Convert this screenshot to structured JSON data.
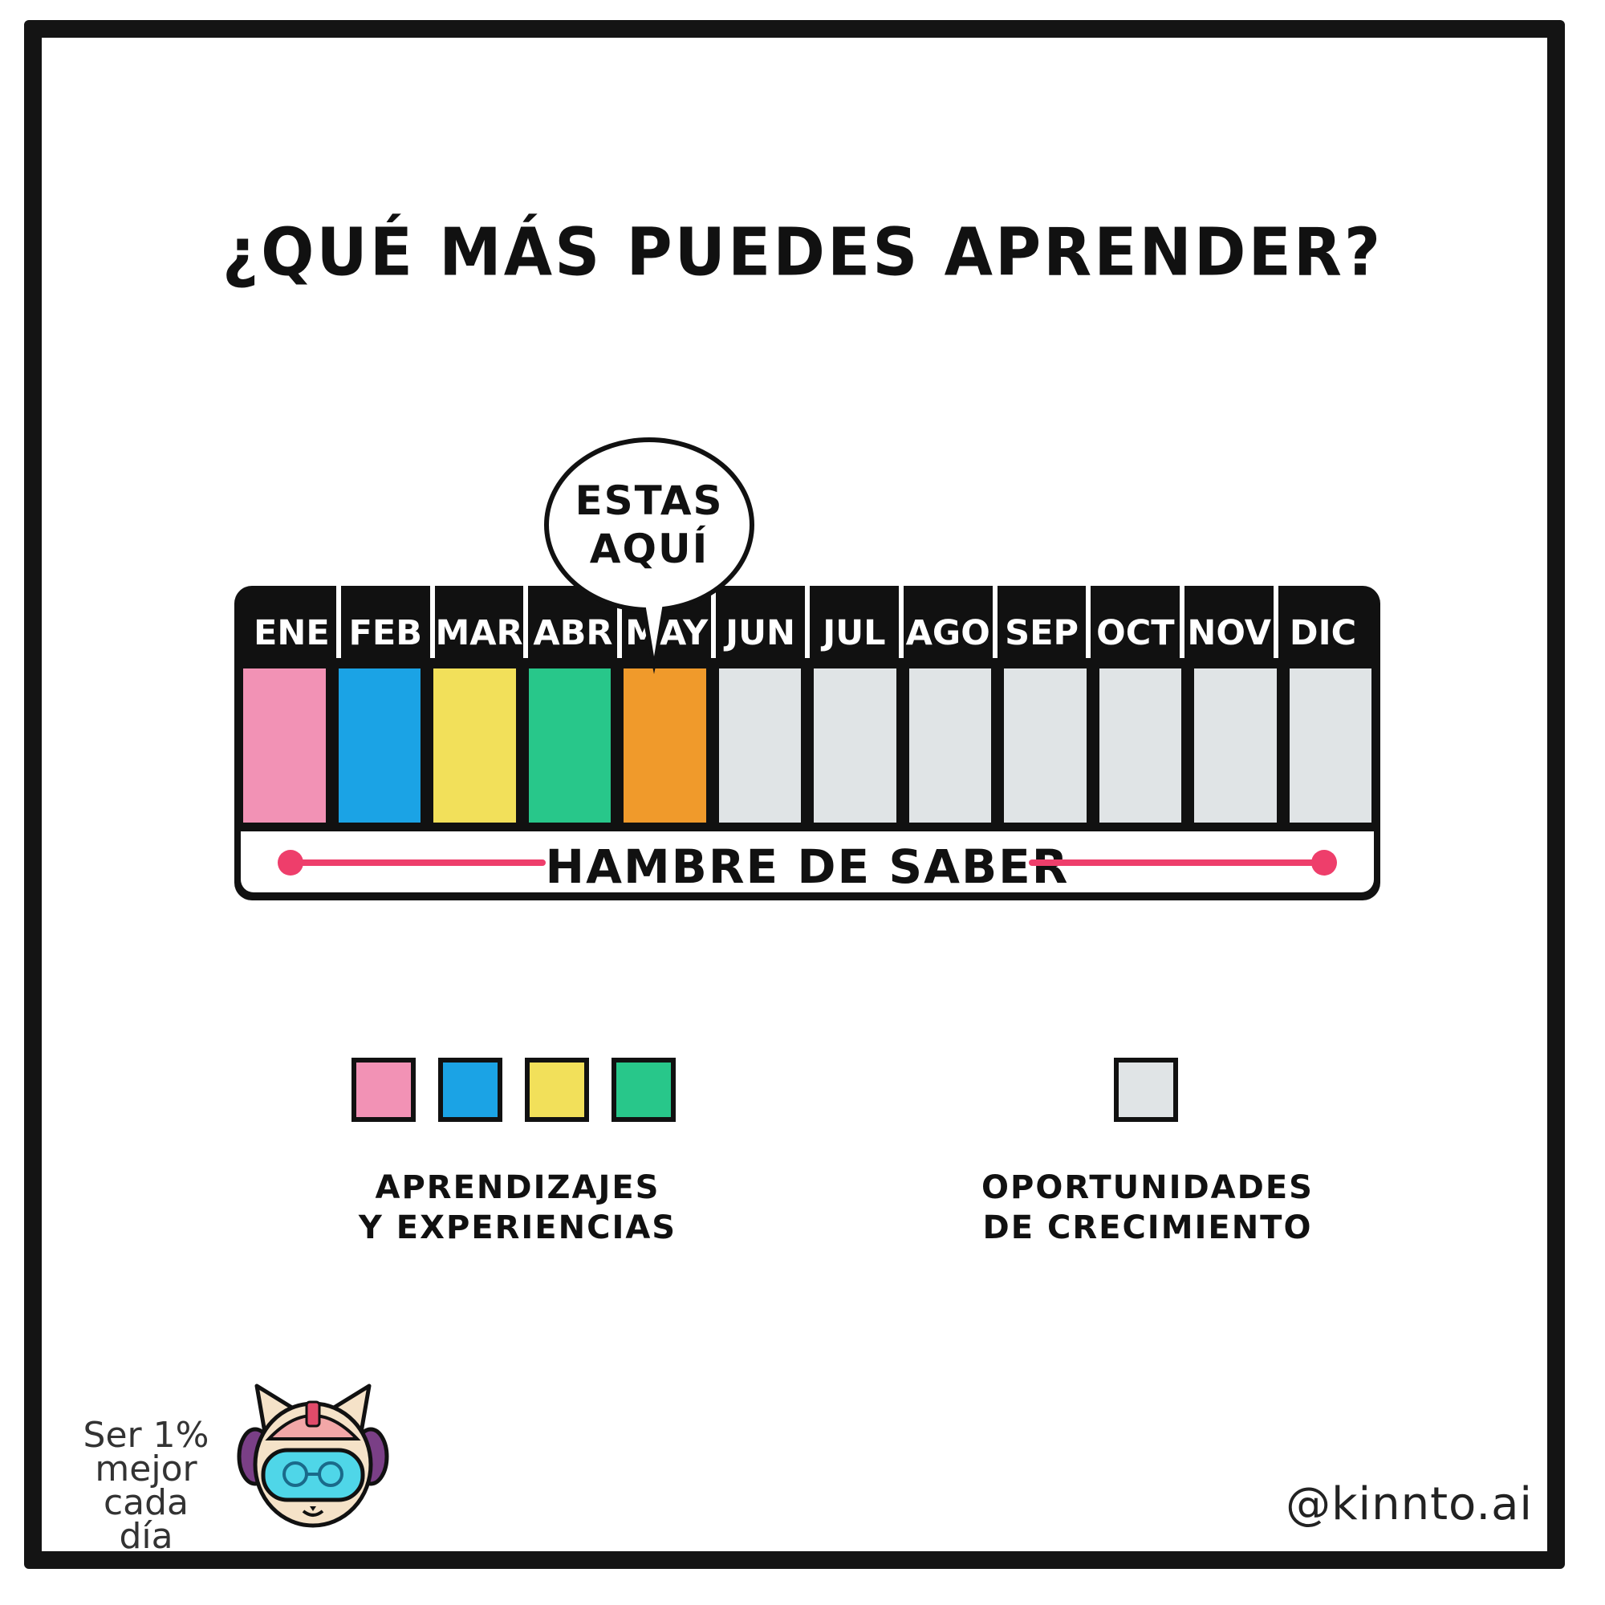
{
  "title": "¿QUÉ MÁS PUEDES APRENDER?",
  "bubble": {
    "line1": "ESTAS",
    "line2": "AQUÍ"
  },
  "months": [
    {
      "label": "ENE",
      "color": "#f292b5"
    },
    {
      "label": "FEB",
      "color": "#1ba3e5"
    },
    {
      "label": "MAR",
      "color": "#f2e05a"
    },
    {
      "label": "ABR",
      "color": "#28c78a"
    },
    {
      "label": "MAY",
      "color": "#f09a2b"
    },
    {
      "label": "JUN",
      "color": "#e0e4e6"
    },
    {
      "label": "JUL",
      "color": "#e0e4e6"
    },
    {
      "label": "AGO",
      "color": "#e0e4e6"
    },
    {
      "label": "SEP",
      "color": "#e0e4e6"
    },
    {
      "label": "OCT",
      "color": "#e0e4e6"
    },
    {
      "label": "NOV",
      "color": "#e0e4e6"
    },
    {
      "label": "DIC",
      "color": "#e0e4e6"
    }
  ],
  "bar_label": "HAMBRE DE SABER",
  "legend": {
    "learnings": {
      "line1": "APRENDIZAJES",
      "line2": "Y EXPERIENCIAS",
      "colors": [
        "#f292b5",
        "#1ba3e5",
        "#f2e05a",
        "#28c78a"
      ]
    },
    "opportunities": {
      "line1": "OPORTUNIDADES",
      "line2": "DE CRECIMIENTO",
      "color": "#e0e4e6"
    }
  },
  "footer": {
    "motto": [
      "Ser 1%",
      "mejor",
      "cada día"
    ],
    "mascot_icon": "cat-astronaut-icon",
    "handle": "@kinnto.ai"
  },
  "accent_color": "#ee3e6b"
}
